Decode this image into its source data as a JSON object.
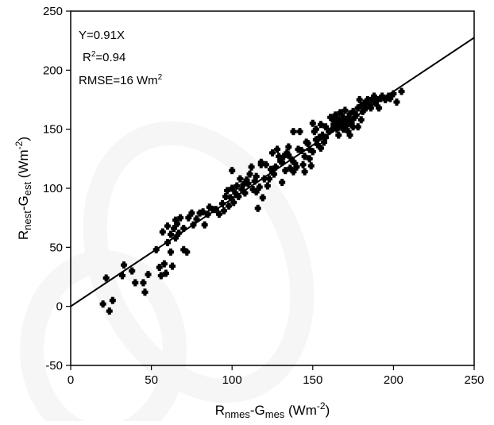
{
  "chart_data": {
    "type": "scatter",
    "xlabel": {
      "main": "R",
      "sub1": "nmes",
      "mid": "-G",
      "sub2": "mes",
      "unit": " (Wm",
      "sup": "-2",
      "close": ")"
    },
    "ylabel": {
      "main": "R",
      "sub1": "nest",
      "mid": "-G",
      "sub2": "est",
      "unit": " (Wm",
      "sup": "-2",
      "close": ")"
    },
    "xlim": [
      0,
      250
    ],
    "ylim": [
      -50,
      250
    ],
    "xticks": [
      "0",
      "50",
      "100",
      "150",
      "200",
      "250"
    ],
    "yticks": [
      "-50",
      "0",
      "50",
      "100",
      "150",
      "200",
      "250"
    ],
    "grid": false,
    "fit_line": {
      "slope": 0.91,
      "intercept": 0
    },
    "annotations": {
      "equation": "Y=0.91X",
      "r2_prefix": "R",
      "r2_sup": "2",
      "r2_value": "=0.94",
      "rmse_prefix": "RMSE=16 Wm",
      "rmse_sup": "2"
    },
    "points": [
      [
        20,
        2
      ],
      [
        22,
        24
      ],
      [
        24,
        -4
      ],
      [
        26,
        5
      ],
      [
        32,
        26
      ],
      [
        33,
        35
      ],
      [
        38,
        30
      ],
      [
        40,
        20
      ],
      [
        45,
        20
      ],
      [
        46,
        12
      ],
      [
        48,
        27
      ],
      [
        53,
        48
      ],
      [
        55,
        33
      ],
      [
        56,
        26
      ],
      [
        57,
        63
      ],
      [
        58,
        36
      ],
      [
        59,
        28
      ],
      [
        60,
        54
      ],
      [
        62,
        46
      ],
      [
        63,
        34
      ],
      [
        60,
        68
      ],
      [
        62,
        61
      ],
      [
        64,
        66
      ],
      [
        65,
        73
      ],
      [
        65,
        58
      ],
      [
        66,
        70
      ],
      [
        67,
        62
      ],
      [
        68,
        75
      ],
      [
        70,
        66
      ],
      [
        70,
        48
      ],
      [
        72,
        46
      ],
      [
        73,
        75
      ],
      [
        75,
        79
      ],
      [
        76,
        69
      ],
      [
        78,
        74
      ],
      [
        80,
        79
      ],
      [
        82,
        80
      ],
      [
        83,
        69
      ],
      [
        85,
        78
      ],
      [
        86,
        84
      ],
      [
        88,
        82
      ],
      [
        90,
        82
      ],
      [
        92,
        78
      ],
      [
        94,
        87
      ],
      [
        95,
        81
      ],
      [
        96,
        93
      ],
      [
        97,
        98
      ],
      [
        98,
        85
      ],
      [
        99,
        92
      ],
      [
        100,
        100
      ],
      [
        100,
        115
      ],
      [
        101,
        88
      ],
      [
        102,
        96
      ],
      [
        103,
        102
      ],
      [
        104,
        93
      ],
      [
        105,
        108
      ],
      [
        106,
        99
      ],
      [
        107,
        103
      ],
      [
        108,
        96
      ],
      [
        109,
        107
      ],
      [
        110,
        104
      ],
      [
        111,
        112
      ],
      [
        112,
        118
      ],
      [
        113,
        99
      ],
      [
        114,
        106
      ],
      [
        115,
        97
      ],
      [
        115,
        110
      ],
      [
        116,
        83
      ],
      [
        117,
        101
      ],
      [
        118,
        122
      ],
      [
        118,
        120
      ],
      [
        119,
        92
      ],
      [
        120,
        108
      ],
      [
        121,
        120
      ],
      [
        122,
        102
      ],
      [
        123,
        108
      ],
      [
        124,
        116
      ],
      [
        125,
        130
      ],
      [
        126,
        112
      ],
      [
        127,
        118
      ],
      [
        128,
        133
      ],
      [
        129,
        127
      ],
      [
        130,
        123
      ],
      [
        131,
        105
      ],
      [
        131,
        122
      ],
      [
        132,
        127
      ],
      [
        133,
        115
      ],
      [
        134,
        130
      ],
      [
        135,
        128
      ],
      [
        135,
        135
      ],
      [
        136,
        117
      ],
      [
        137,
        124
      ],
      [
        138,
        148
      ],
      [
        138,
        114
      ],
      [
        139,
        121
      ],
      [
        140,
        118
      ],
      [
        141,
        133
      ],
      [
        142,
        148
      ],
      [
        143,
        132
      ],
      [
        144,
        120
      ],
      [
        145,
        114
      ],
      [
        145,
        127
      ],
      [
        146,
        139
      ],
      [
        147,
        138
      ],
      [
        148,
        133
      ],
      [
        148,
        125
      ],
      [
        149,
        119
      ],
      [
        150,
        131
      ],
      [
        150,
        155
      ],
      [
        151,
        148
      ],
      [
        152,
        150
      ],
      [
        152,
        141
      ],
      [
        153,
        137
      ],
      [
        154,
        143
      ],
      [
        155,
        154
      ],
      [
        155,
        134
      ],
      [
        156,
        145
      ],
      [
        157,
        139
      ],
      [
        158,
        152
      ],
      [
        158,
        143
      ],
      [
        160,
        148
      ],
      [
        161,
        160
      ],
      [
        162,
        150
      ],
      [
        163,
        154
      ],
      [
        163,
        157
      ],
      [
        164,
        162
      ],
      [
        165,
        153
      ],
      [
        165,
        150
      ],
      [
        166,
        158
      ],
      [
        166,
        145
      ],
      [
        167,
        155
      ],
      [
        167,
        164
      ],
      [
        168,
        152
      ],
      [
        168,
        157
      ],
      [
        169,
        150
      ],
      [
        169,
        160
      ],
      [
        170,
        155
      ],
      [
        170,
        166
      ],
      [
        171,
        153
      ],
      [
        171,
        158
      ],
      [
        172,
        148
      ],
      [
        172,
        160
      ],
      [
        173,
        145
      ],
      [
        173,
        163
      ],
      [
        174,
        157
      ],
      [
        174,
        155
      ],
      [
        175,
        152
      ],
      [
        175,
        165
      ],
      [
        176,
        160
      ],
      [
        177,
        162
      ],
      [
        178,
        168
      ],
      [
        178,
        152
      ],
      [
        179,
        175
      ],
      [
        180,
        170
      ],
      [
        180,
        158
      ],
      [
        181,
        165
      ],
      [
        182,
        172
      ],
      [
        183,
        168
      ],
      [
        184,
        175
      ],
      [
        185,
        172
      ],
      [
        186,
        168
      ],
      [
        187,
        176
      ],
      [
        188,
        178
      ],
      [
        189,
        172
      ],
      [
        190,
        175
      ],
      [
        191,
        168
      ],
      [
        192,
        176
      ],
      [
        193,
        178
      ],
      [
        195,
        175
      ],
      [
        197,
        178
      ],
      [
        198,
        176
      ],
      [
        200,
        180
      ],
      [
        202,
        173
      ],
      [
        205,
        182
      ]
    ]
  }
}
